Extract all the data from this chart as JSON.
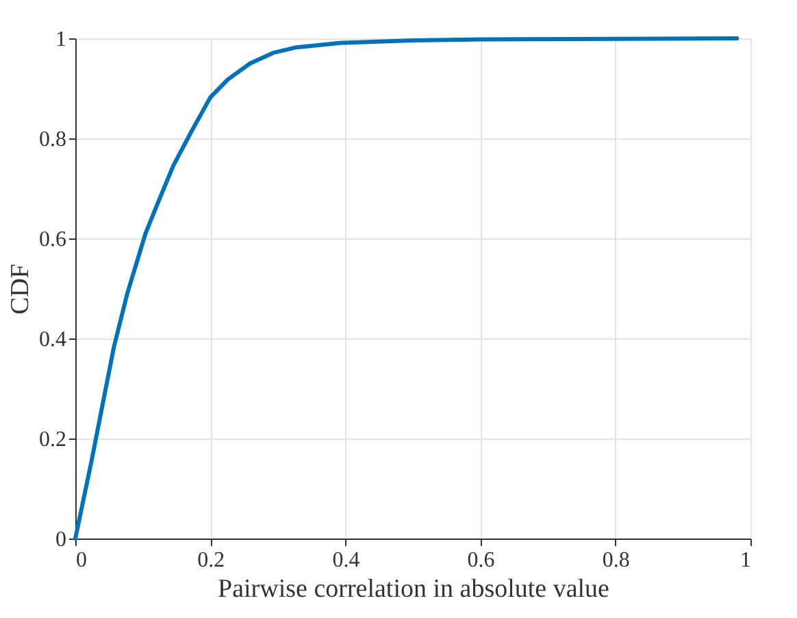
{
  "chart_data": {
    "type": "line",
    "xlabel": "Pairwise correlation in absolute value",
    "ylabel": "CDF",
    "x": [
      0,
      0.024,
      0.057,
      0.077,
      0.104,
      0.125,
      0.145,
      0.172,
      0.2,
      0.226,
      0.259,
      0.293,
      0.327,
      0.394,
      0.5,
      0.6,
      0.8,
      0.98
    ],
    "series": [
      {
        "color": "#0072bd",
        "values": [
          0,
          0.155,
          0.382,
          0.49,
          0.61,
          0.68,
          0.745,
          0.814,
          0.882,
          0.918,
          0.95,
          0.971,
          0.982,
          0.991,
          0.996,
          0.998,
          0.999,
          1.0
        ]
      }
    ],
    "xlim": [
      0,
      1
    ],
    "ylim": [
      0,
      1
    ],
    "xticks": [
      0,
      0.2,
      0.4,
      0.6,
      0.8,
      1
    ],
    "yticks": [
      0,
      0.2,
      0.4,
      0.6,
      0.8,
      1
    ],
    "grid": true,
    "marker": "none",
    "line_style": "solid"
  }
}
